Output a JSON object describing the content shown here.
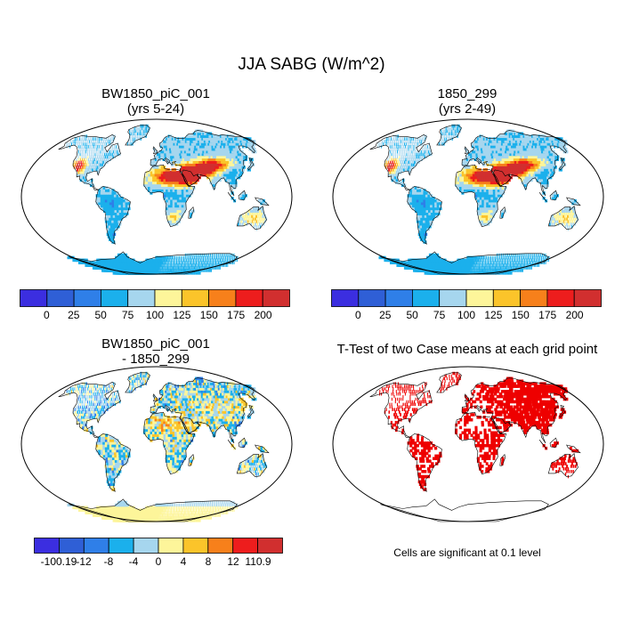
{
  "figure": {
    "title": "JJA SABG (W/m^2)",
    "panels": {
      "top_left": {
        "title_line1": "BW1850_piC_001",
        "title_line2": "(yrs 5-24)"
      },
      "top_right": {
        "title_line1": "1850_299",
        "title_line2": "(yrs 2-49)"
      },
      "bottom_left": {
        "title_line1": "BW1850_piC_001",
        "title_line2": "- 1850_299"
      },
      "bottom_right": {
        "title_line1": "T-Test of two Case means at each grid point"
      }
    },
    "significance_note": "Cells are significant at 0.1 level"
  },
  "colorbars": {
    "absolute": {
      "colors": [
        "#3b2ee0",
        "#2f5fd6",
        "#2f7fe8",
        "#1bb0ec",
        "#a6d6ee",
        "#fdf59a",
        "#fbc42a",
        "#f7801b",
        "#ed1d1d",
        "#d12f2f"
      ],
      "labels": [
        "0",
        "25",
        "50",
        "75",
        "100",
        "125",
        "150",
        "175",
        "200"
      ]
    },
    "difference": {
      "colors": [
        "#3b2ee0",
        "#2f5fd6",
        "#2f7fe8",
        "#1bb0ec",
        "#a6d6ee",
        "#fdf59a",
        "#fbc42a",
        "#f7801b",
        "#ed1d1d",
        "#d12f2f"
      ],
      "labels": [
        "-100.19",
        "-12",
        "-8",
        "-4",
        "0",
        "4",
        "8",
        "12",
        "110.9"
      ]
    }
  },
  "colors": {
    "ocean": "#ffffff",
    "coast": "#000000",
    "significant": "#ee0000"
  }
}
